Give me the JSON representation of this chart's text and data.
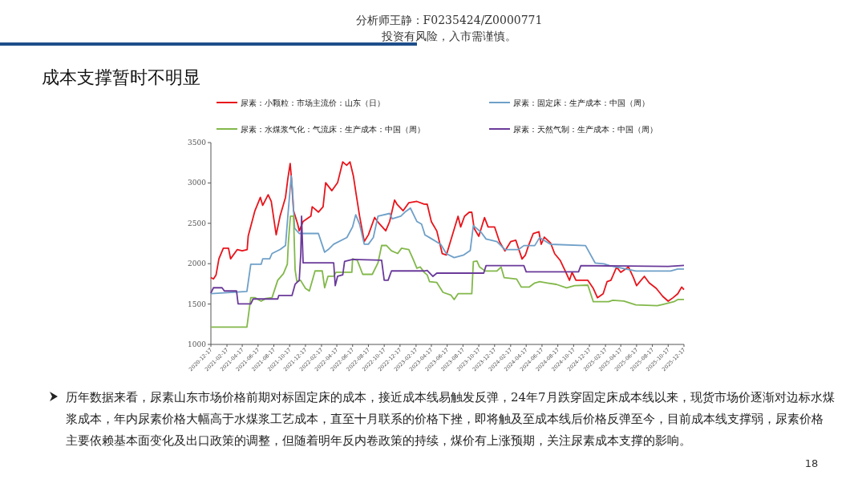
{
  "chart_data": {
    "type": "line",
    "title": "成本支撑暂时不明显",
    "annotations": [
      "分析师王静：F0235424/Z0000771",
      "投资有风险，入市需谨慎。",
      "历年数据来看，尿素山东市场价格前期对标固定床的成本，接近成本线易触发反弹，24年7月跌穿固定床成本线以来，现货市场价逐渐对边标水煤浆成本，年内尿素价格大幅高于水煤浆工艺成本，直至十月联系的价格下挫，即将触及至成本线后价格反弹至今，目前成本线支撑弱，尿素价格主要依赖基本面变化及出口政策的调整，但随着明年反内卷政策的持续，煤价有上涨预期，关注尿素成本支撑的影响。",
      "18"
    ],
    "xlim": [
      "2020-12-17",
      "2025-12-17"
    ],
    "xticks": [
      "2020-12-17",
      "2021-02-17",
      "2021-04-17",
      "2021-06-17",
      "2021-08-17",
      "2021-10-17",
      "2021-12-17",
      "2022-02-17",
      "2022-04-17",
      "2022-06-17",
      "2022-08-17",
      "2022-10-17",
      "2022-12-17",
      "2023-02-17",
      "2023-04-17",
      "2023-06-17",
      "2023-08-17",
      "2023-10-17",
      "2023-12-17",
      "2024-02-17",
      "2024-04-17",
      "2024-06-17",
      "2024-08-17",
      "2024-10-17",
      "2024-12-17",
      "2025-02-17",
      "2025-04-17",
      "2025-06-17",
      "2025-08-17",
      "2025-10-17",
      "2025-12-17"
    ],
    "ylim": [
      1000,
      3500
    ],
    "yticks": [
      1000,
      1500,
      2000,
      2500,
      3000,
      3500
    ],
    "grid": false,
    "legend": "top",
    "marker": "none",
    "line_style": "solid",
    "series": [
      {
        "name": "尿素：小颗粒：市场主流价：山东（日）",
        "color": "#e8141b",
        "x": [
          "2020-12-17",
          "2020-12-27",
          "2021-01-06",
          "2021-01-17",
          "2021-02-03",
          "2021-02-23",
          "2021-03-03",
          "2021-03-29",
          "2021-04-17",
          "2021-05-06",
          "2021-05-10",
          "2021-06-05",
          "2021-06-26",
          "2021-07-05",
          "2021-07-26",
          "2021-08-07",
          "2021-08-26",
          "2021-09-10",
          "2021-10-01",
          "2021-10-10",
          "2021-10-19",
          "2021-10-24",
          "2021-11-01",
          "2021-11-17",
          "2021-11-23",
          "2021-12-08",
          "2022-01-07",
          "2022-01-12",
          "2022-02-05",
          "2022-02-23",
          "2022-03-05",
          "2022-03-29",
          "2022-04-20",
          "2022-05-10",
          "2022-05-25",
          "2022-06-07",
          "2022-06-20",
          "2022-07-01",
          "2022-07-14",
          "2022-08-01",
          "2022-08-17",
          "2022-09-10",
          "2022-09-25",
          "2022-10-23",
          "2022-11-07",
          "2022-11-26",
          "2022-12-05",
          "2022-12-29",
          "2023-01-20",
          "2023-02-20",
          "2023-03-20",
          "2023-04-01",
          "2023-04-17",
          "2023-05-08",
          "2023-05-29",
          "2023-06-14",
          "2023-07-01",
          "2023-07-29",
          "2023-08-08",
          "2023-08-23",
          "2023-09-10",
          "2023-09-20",
          "2023-09-29",
          "2023-10-17",
          "2023-11-08",
          "2023-11-22",
          "2023-12-17",
          "2024-01-05",
          "2024-01-26",
          "2024-02-17",
          "2024-03-08",
          "2024-04-01",
          "2024-04-14",
          "2024-04-26",
          "2024-05-14",
          "2024-06-05",
          "2024-06-14",
          "2024-06-26",
          "2024-07-20",
          "2024-08-05",
          "2024-08-26",
          "2024-09-17",
          "2024-10-01",
          "2024-10-11",
          "2024-10-26",
          "2024-12-11",
          "2025-01-01",
          "2025-01-17",
          "2025-02-08",
          "2025-02-23",
          "2025-03-10",
          "2025-04-01",
          "2025-04-17",
          "2025-05-17",
          "2025-06-05",
          "2025-06-17",
          "2025-07-17",
          "2025-08-05",
          "2025-09-01",
          "2025-09-26",
          "2025-10-17",
          "2025-11-05",
          "2025-11-23",
          "2025-12-08",
          "2025-12-17"
        ],
        "values": [
          1828,
          1811,
          1861,
          2060,
          2192,
          2192,
          2060,
          2175,
          2159,
          2175,
          2341,
          2656,
          2821,
          2722,
          2854,
          2771,
          2358,
          2589,
          2821,
          3053,
          3241,
          3053,
          2656,
          2490,
          2407,
          2523,
          2589,
          2705,
          2639,
          2705,
          3003,
          2904,
          3003,
          3261,
          3218,
          3261,
          3086,
          2854,
          2589,
          2275,
          2358,
          2573,
          2506,
          2407,
          2523,
          2788,
          2738,
          2656,
          2755,
          2771,
          2738,
          2736,
          2521,
          2405,
          2124,
          2108,
          2290,
          2587,
          2455,
          2587,
          2637,
          2637,
          2439,
          2339,
          2571,
          2455,
          2455,
          2273,
          2157,
          2273,
          2290,
          2058,
          2108,
          2224,
          2372,
          2396,
          2240,
          2329,
          2257,
          2124,
          2042,
          1893,
          1794,
          1893,
          1794,
          1794,
          1694,
          1579,
          1628,
          1777,
          1794,
          1959,
          1893,
          1959,
          1827,
          1728,
          1843,
          1761,
          1694,
          1595,
          1536,
          1579,
          1628,
          1711,
          1678
        ]
      },
      {
        "name": "尿素：固定床：生产成本：中国（周）",
        "color": "#6fa0c8",
        "x": [
          "2020-12-17",
          "2021-05-05",
          "2021-05-20",
          "2021-06-29",
          "2021-07-05",
          "2021-08-01",
          "2021-08-10",
          "2021-09-10",
          "2021-10-01",
          "2021-10-10",
          "2021-10-23",
          "2021-10-28",
          "2021-11-05",
          "2021-11-23",
          "2022-02-05",
          "2022-03-01",
          "2022-03-15",
          "2022-04-05",
          "2022-05-26",
          "2022-06-17",
          "2022-06-29",
          "2022-07-14",
          "2022-08-01",
          "2022-08-17",
          "2022-09-05",
          "2022-09-23",
          "2022-11-07",
          "2022-11-17",
          "2022-12-20",
          "2023-01-05",
          "2023-01-26",
          "2023-02-20",
          "2023-03-10",
          "2023-03-20",
          "2023-03-23",
          "2023-04-10",
          "2023-05-23",
          "2023-06-14",
          "2023-07-14",
          "2023-08-20",
          "2023-09-14",
          "2023-09-26",
          "2023-10-26",
          "2023-11-14",
          "2023-12-26",
          "2024-01-26",
          "2024-03-17",
          "2024-04-08",
          "2024-05-20",
          "2024-06-08",
          "2024-07-20",
          "2024-12-02",
          "2025-01-08",
          "2025-02-11",
          "2025-03-05",
          "2025-06-14",
          "2025-10-26",
          "2025-11-23",
          "2025-12-17"
        ],
        "values": [
          1629,
          1656,
          1993,
          1993,
          2060,
          2060,
          2126,
          2175,
          2225,
          2589,
          3086,
          2920,
          2440,
          2374,
          2374,
          2142,
          2175,
          2241,
          2324,
          2457,
          2606,
          2490,
          2241,
          2241,
          2324,
          2589,
          2622,
          2556,
          2589,
          2639,
          2689,
          2523,
          2490,
          2391,
          2356,
          2323,
          2240,
          2124,
          2075,
          2108,
          2164,
          2472,
          2389,
          2306,
          2273,
          2174,
          2174,
          2224,
          2224,
          2323,
          2240,
          2224,
          2009,
          1999,
          1976,
          1909,
          1909,
          1933,
          1933
        ]
      },
      {
        "name": "尿素：水煤浆气化：气流床：生产成本：中国（周）",
        "color": "#82b84a",
        "x": [
          "2020-12-17",
          "2021-05-05",
          "2021-05-20",
          "2021-06-05",
          "2021-06-29",
          "2021-07-17",
          "2021-08-10",
          "2021-09-01",
          "2021-09-23",
          "2021-10-08",
          "2021-10-12",
          "2021-10-20",
          "2021-11-01",
          "2021-11-07",
          "2021-11-14",
          "2021-11-28",
          "2021-12-17",
          "2022-01-01",
          "2022-01-23",
          "2022-02-20",
          "2022-03-01",
          "2022-03-14",
          "2022-04-05",
          "2022-04-14",
          "2022-06-14",
          "2022-06-17",
          "2022-07-05",
          "2022-07-26",
          "2022-09-01",
          "2022-09-23",
          "2022-10-07",
          "2022-10-26",
          "2022-11-14",
          "2022-12-08",
          "2022-12-23",
          "2023-01-20",
          "2023-02-05",
          "2023-02-20",
          "2023-03-05",
          "2023-03-20",
          "2023-04-01",
          "2023-04-10",
          "2023-05-08",
          "2023-06-01",
          "2023-07-01",
          "2023-07-14",
          "2023-07-29",
          "2023-09-20",
          "2023-09-26",
          "2023-10-10",
          "2023-10-20",
          "2023-11-11",
          "2023-12-26",
          "2024-01-11",
          "2024-01-23",
          "2024-03-11",
          "2024-03-29",
          "2024-04-29",
          "2024-05-20",
          "2024-06-08",
          "2024-07-08",
          "2024-08-11",
          "2024-09-20",
          "2024-10-20",
          "2024-12-11",
          "2025-01-01",
          "2025-03-01",
          "2025-03-17",
          "2025-04-29",
          "2025-06-14",
          "2025-09-05",
          "2025-09-26",
          "2025-11-08",
          "2025-11-23",
          "2025-12-17"
        ],
        "values": [
          1215,
          1215,
          1579,
          1579,
          1536,
          1569,
          1579,
          1795,
          1877,
          1993,
          2258,
          2589,
          2589,
          1927,
          1778,
          1795,
          1695,
          1662,
          1910,
          1910,
          1702,
          1844,
          1844,
          1894,
          1894,
          2060,
          2043,
          1868,
          1868,
          2010,
          2225,
          2225,
          2159,
          2126,
          2192,
          2175,
          2060,
          1944,
          1960,
          1894,
          1860,
          1777,
          1767,
          1645,
          1612,
          1556,
          1628,
          1628,
          2025,
          2032,
          1959,
          1909,
          1909,
          1959,
          1827,
          1810,
          1711,
          1711,
          1761,
          1777,
          1761,
          1744,
          1701,
          1727,
          1734,
          1529,
          1529,
          1546,
          1536,
          1489,
          1479,
          1496,
          1529,
          1556,
          1556
        ]
      },
      {
        "name": "尿素：天然气制：生产成本：中国（周）",
        "color": "#6a3a9a",
        "x": [
          "2020-12-17",
          "2020-12-27",
          "2021-01-29",
          "2021-02-07",
          "2021-03-26",
          "2021-04-01",
          "2021-05-20",
          "2021-05-29",
          "2021-09-01",
          "2021-09-05",
          "2021-10-26",
          "2021-11-07",
          "2021-11-23",
          "2021-11-29",
          "2021-12-02",
          "2021-12-08",
          "2021-12-17",
          "2022-04-05",
          "2022-04-11",
          "2022-04-20",
          "2022-05-10",
          "2022-05-17",
          "2022-06-17",
          "2022-10-07",
          "2022-10-17",
          "2022-11-01",
          "2022-11-14",
          "2023-03-20",
          "2023-04-01",
          "2023-04-23",
          "2023-05-08",
          "2023-11-05",
          "2023-11-14",
          "2024-04-08",
          "2024-04-17",
          "2024-11-05",
          "2024-11-14",
          "2025-10-17",
          "2025-12-17"
        ],
        "values": [
          1636,
          1702,
          1702,
          1662,
          1662,
          1503,
          1503,
          1563,
          1563,
          1606,
          1606,
          1745,
          1795,
          2126,
          2589,
          2010,
          2010,
          2010,
          1728,
          1844,
          1861,
          2027,
          2053,
          2043,
          1795,
          1795,
          1910,
          1910,
          1916,
          1843,
          1883,
          1883,
          1976,
          1976,
          1899,
          1899,
          1976,
          1966,
          1979
        ]
      }
    ]
  }
}
